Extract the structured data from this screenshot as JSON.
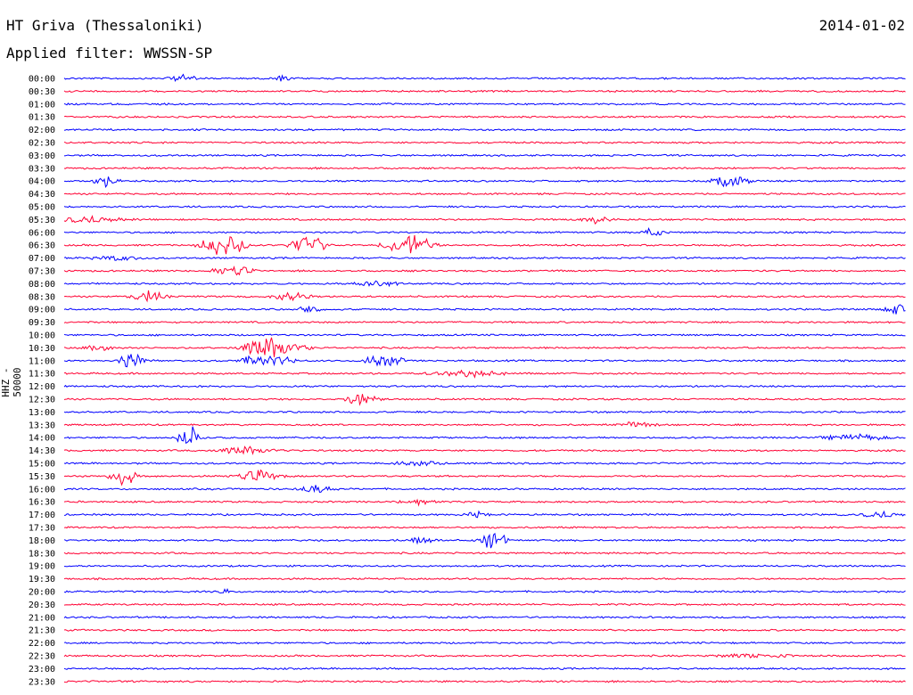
{
  "header": {
    "station": "HT Griva (Thessaloniki)",
    "date": "2014-01-02",
    "filter": "Applied filter: WWSSN-SP"
  },
  "chart_data": {
    "type": "line",
    "title": "HT Griva (Thessaloniki)",
    "ylabel": "HHZ - 50000",
    "series_colors": [
      "#0000ff",
      "#ff0033"
    ],
    "categories": [
      "00:00",
      "00:30",
      "01:00",
      "01:30",
      "02:00",
      "02:30",
      "03:00",
      "03:30",
      "04:00",
      "04:30",
      "05:00",
      "05:30",
      "06:00",
      "06:30",
      "07:00",
      "07:30",
      "08:00",
      "08:30",
      "09:00",
      "09:30",
      "10:00",
      "10:30",
      "11:00",
      "11:30",
      "12:00",
      "12:30",
      "13:00",
      "13:30",
      "14:00",
      "14:30",
      "15:00",
      "15:30",
      "16:00",
      "16:30",
      "17:00",
      "17:30",
      "18:00",
      "18:30",
      "19:00",
      "19:30",
      "20:00",
      "20:30",
      "21:00",
      "21:30",
      "22:00",
      "22:30",
      "23:00",
      "23:30"
    ],
    "events": [
      {
        "row": 0,
        "t": 0.14,
        "amp": 5,
        "w": 0.02
      },
      {
        "row": 0,
        "t": 0.26,
        "amp": 7,
        "w": 0.01
      },
      {
        "row": 8,
        "t": 0.05,
        "amp": 8,
        "w": 0.02
      },
      {
        "row": 8,
        "t": 0.79,
        "amp": 14,
        "w": 0.03
      },
      {
        "row": 11,
        "t": 0.03,
        "amp": 4,
        "w": 0.06
      },
      {
        "row": 11,
        "t": 0.63,
        "amp": 4,
        "w": 0.03
      },
      {
        "row": 12,
        "t": 0.7,
        "amp": 6,
        "w": 0.02
      },
      {
        "row": 13,
        "t": 0.19,
        "amp": 14,
        "w": 0.04
      },
      {
        "row": 13,
        "t": 0.29,
        "amp": 14,
        "w": 0.03
      },
      {
        "row": 13,
        "t": 0.41,
        "amp": 14,
        "w": 0.04
      },
      {
        "row": 14,
        "t": 0.06,
        "amp": 3,
        "w": 0.04
      },
      {
        "row": 15,
        "t": 0.2,
        "amp": 8,
        "w": 0.03
      },
      {
        "row": 16,
        "t": 0.37,
        "amp": 6,
        "w": 0.03
      },
      {
        "row": 17,
        "t": 0.1,
        "amp": 7,
        "w": 0.03
      },
      {
        "row": 17,
        "t": 0.27,
        "amp": 6,
        "w": 0.03
      },
      {
        "row": 18,
        "t": 0.29,
        "amp": 6,
        "w": 0.02
      },
      {
        "row": 18,
        "t": 0.99,
        "amp": 9,
        "w": 0.02
      },
      {
        "row": 21,
        "t": 0.25,
        "amp": 16,
        "w": 0.05
      },
      {
        "row": 21,
        "t": 0.04,
        "amp": 5,
        "w": 0.02
      },
      {
        "row": 22,
        "t": 0.08,
        "amp": 14,
        "w": 0.02
      },
      {
        "row": 22,
        "t": 0.24,
        "amp": 10,
        "w": 0.04
      },
      {
        "row": 22,
        "t": 0.38,
        "amp": 12,
        "w": 0.03
      },
      {
        "row": 23,
        "t": 0.48,
        "amp": 4,
        "w": 0.06
      },
      {
        "row": 25,
        "t": 0.35,
        "amp": 9,
        "w": 0.03
      },
      {
        "row": 27,
        "t": 0.68,
        "amp": 4,
        "w": 0.03
      },
      {
        "row": 28,
        "t": 0.15,
        "amp": 16,
        "w": 0.02
      },
      {
        "row": 28,
        "t": 0.94,
        "amp": 4,
        "w": 0.05
      },
      {
        "row": 29,
        "t": 0.22,
        "amp": 5,
        "w": 0.05
      },
      {
        "row": 30,
        "t": 0.42,
        "amp": 4,
        "w": 0.04
      },
      {
        "row": 31,
        "t": 0.07,
        "amp": 15,
        "w": 0.02
      },
      {
        "row": 31,
        "t": 0.23,
        "amp": 7,
        "w": 0.04
      },
      {
        "row": 32,
        "t": 0.3,
        "amp": 5,
        "w": 0.03
      },
      {
        "row": 33,
        "t": 0.42,
        "amp": 4,
        "w": 0.03
      },
      {
        "row": 34,
        "t": 0.49,
        "amp": 4,
        "w": 0.02
      },
      {
        "row": 34,
        "t": 0.97,
        "amp": 4,
        "w": 0.03
      },
      {
        "row": 36,
        "t": 0.51,
        "amp": 14,
        "w": 0.02
      },
      {
        "row": 36,
        "t": 0.42,
        "amp": 4,
        "w": 0.03
      },
      {
        "row": 40,
        "t": 0.19,
        "amp": 5,
        "w": 0.01
      },
      {
        "row": 45,
        "t": 0.82,
        "amp": 3,
        "w": 0.06
      }
    ]
  }
}
